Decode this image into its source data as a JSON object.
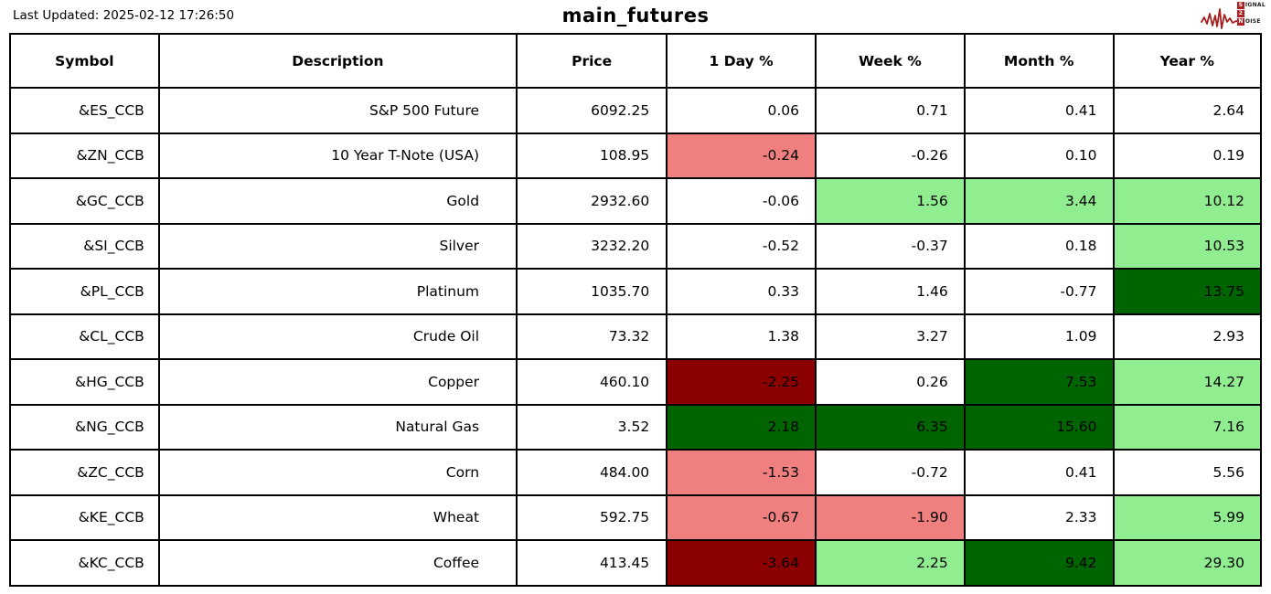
{
  "meta": {
    "last_updated": "Last Updated: 2025-02-12 17:26:50",
    "title": "main_futures"
  },
  "logo": {
    "line1_box": "S",
    "line1_rest": "IGNAL",
    "line2_box": "2",
    "line2_rest": "",
    "line3_box": "N",
    "line3_rest": "OISE",
    "brand_color": "#b01f24"
  },
  "colors": {
    "lr": "#F08080",
    "lg": "#90EE90",
    "dg": "#006400",
    "dr": "#8B0000"
  },
  "table": {
    "headers": [
      "Symbol",
      "Description",
      "Price",
      "1 Day %",
      "Week %",
      "Month %",
      "Year %"
    ],
    "rows": [
      {
        "symbol": "&ES_CCB",
        "description": "S&P 500 Future",
        "price": "6092.25",
        "cells": [
          {
            "v": "0.06",
            "bg": "none"
          },
          {
            "v": "0.71",
            "bg": "none"
          },
          {
            "v": "0.41",
            "bg": "none"
          },
          {
            "v": "2.64",
            "bg": "none"
          }
        ]
      },
      {
        "symbol": "&ZN_CCB",
        "description": "10 Year T-Note (USA)",
        "price": "108.95",
        "cells": [
          {
            "v": "-0.24",
            "bg": "lr"
          },
          {
            "v": "-0.26",
            "bg": "none"
          },
          {
            "v": "0.10",
            "bg": "none"
          },
          {
            "v": "0.19",
            "bg": "none"
          }
        ]
      },
      {
        "symbol": "&GC_CCB",
        "description": "Gold",
        "price": "2932.60",
        "cells": [
          {
            "v": "-0.06",
            "bg": "none"
          },
          {
            "v": "1.56",
            "bg": "lg"
          },
          {
            "v": "3.44",
            "bg": "lg"
          },
          {
            "v": "10.12",
            "bg": "lg"
          }
        ]
      },
      {
        "symbol": "&SI_CCB",
        "description": "Silver",
        "price": "3232.20",
        "cells": [
          {
            "v": "-0.52",
            "bg": "none"
          },
          {
            "v": "-0.37",
            "bg": "none"
          },
          {
            "v": "0.18",
            "bg": "none"
          },
          {
            "v": "10.53",
            "bg": "lg"
          }
        ]
      },
      {
        "symbol": "&PL_CCB",
        "description": "Platinum",
        "price": "1035.70",
        "cells": [
          {
            "v": "0.33",
            "bg": "none"
          },
          {
            "v": "1.46",
            "bg": "none"
          },
          {
            "v": "-0.77",
            "bg": "none"
          },
          {
            "v": "13.75",
            "bg": "dg"
          }
        ]
      },
      {
        "symbol": "&CL_CCB",
        "description": "Crude Oil",
        "price": "73.32",
        "cells": [
          {
            "v": "1.38",
            "bg": "none"
          },
          {
            "v": "3.27",
            "bg": "none"
          },
          {
            "v": "1.09",
            "bg": "none"
          },
          {
            "v": "2.93",
            "bg": "none"
          }
        ]
      },
      {
        "symbol": "&HG_CCB",
        "description": "Copper",
        "price": "460.10",
        "cells": [
          {
            "v": "-2.25",
            "bg": "dr"
          },
          {
            "v": "0.26",
            "bg": "none"
          },
          {
            "v": "7.53",
            "bg": "dg"
          },
          {
            "v": "14.27",
            "bg": "lg"
          }
        ]
      },
      {
        "symbol": "&NG_CCB",
        "description": "Natural Gas",
        "price": "3.52",
        "cells": [
          {
            "v": "2.18",
            "bg": "dg"
          },
          {
            "v": "6.35",
            "bg": "dg"
          },
          {
            "v": "15.60",
            "bg": "dg"
          },
          {
            "v": "7.16",
            "bg": "lg"
          }
        ]
      },
      {
        "symbol": "&ZC_CCB",
        "description": "Corn",
        "price": "484.00",
        "cells": [
          {
            "v": "-1.53",
            "bg": "lr"
          },
          {
            "v": "-0.72",
            "bg": "none"
          },
          {
            "v": "0.41",
            "bg": "none"
          },
          {
            "v": "5.56",
            "bg": "none"
          }
        ]
      },
      {
        "symbol": "&KE_CCB",
        "description": "Wheat",
        "price": "592.75",
        "cells": [
          {
            "v": "-0.67",
            "bg": "lr"
          },
          {
            "v": "-1.90",
            "bg": "lr"
          },
          {
            "v": "2.33",
            "bg": "none"
          },
          {
            "v": "5.99",
            "bg": "lg"
          }
        ]
      },
      {
        "symbol": "&KC_CCB",
        "description": "Coffee",
        "price": "413.45",
        "cells": [
          {
            "v": "-3.64",
            "bg": "dr"
          },
          {
            "v": "2.25",
            "bg": "lg"
          },
          {
            "v": "9.42",
            "bg": "dg"
          },
          {
            "v": "29.30",
            "bg": "lg"
          }
        ]
      }
    ]
  },
  "chart_data": {
    "type": "table",
    "title": "main_futures",
    "columns": [
      "Symbol",
      "Description",
      "Price",
      "1 Day %",
      "Week %",
      "Month %",
      "Year %"
    ],
    "rows": [
      [
        "&ES_CCB",
        "S&P 500 Future",
        6092.25,
        0.06,
        0.71,
        0.41,
        2.64
      ],
      [
        "&ZN_CCB",
        "10 Year T-Note (USA)",
        108.95,
        -0.24,
        -0.26,
        0.1,
        0.19
      ],
      [
        "&GC_CCB",
        "Gold",
        2932.6,
        -0.06,
        1.56,
        3.44,
        10.12
      ],
      [
        "&SI_CCB",
        "Silver",
        3232.2,
        -0.52,
        -0.37,
        0.18,
        10.53
      ],
      [
        "&PL_CCB",
        "Platinum",
        1035.7,
        0.33,
        1.46,
        -0.77,
        13.75
      ],
      [
        "&CL_CCB",
        "Crude Oil",
        73.32,
        1.38,
        3.27,
        1.09,
        2.93
      ],
      [
        "&HG_CCB",
        "Copper",
        460.1,
        -2.25,
        0.26,
        7.53,
        14.27
      ],
      [
        "&NG_CCB",
        "Natural Gas",
        3.52,
        2.18,
        6.35,
        15.6,
        7.16
      ],
      [
        "&ZC_CCB",
        "Corn",
        484.0,
        -1.53,
        -0.72,
        0.41,
        5.56
      ],
      [
        "&KE_CCB",
        "Wheat",
        592.75,
        -0.67,
        -1.9,
        2.33,
        5.99
      ],
      [
        "&KC_CCB",
        "Coffee",
        413.45,
        -3.64,
        2.25,
        9.42,
        29.3
      ]
    ],
    "cell_highlight_legend": {
      "lr": "light red #F08080",
      "lg": "light green #90EE90",
      "dg": "dark green #006400",
      "dr": "dark red #8B0000",
      "none": "white"
    }
  }
}
